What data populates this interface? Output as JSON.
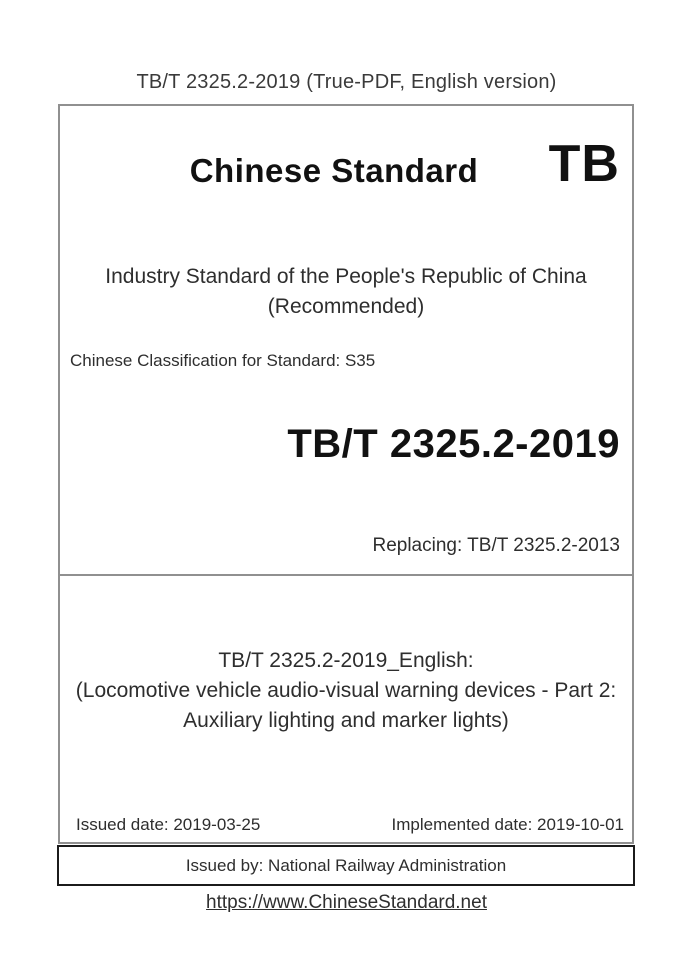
{
  "header": {
    "text": "TB/T 2325.2-2019 (True-PDF, English version)"
  },
  "cover": {
    "brand_title": "Chinese Standard",
    "brand_code": "TB",
    "industry_line1": "Industry Standard of the People's Republic of China",
    "industry_line2": "(Recommended)",
    "classification": "Chinese Classification for Standard: S35",
    "standard_number": "TB/T 2325.2-2019",
    "replacing": "Replacing: TB/T 2325.2-2013",
    "english_title_line1": "TB/T 2325.2-2019_English:",
    "english_title_line2": "(Locomotive vehicle audio-visual warning devices - Part 2:",
    "english_title_line3": "Auxiliary lighting and marker lights)",
    "issued_date": "Issued date: 2019-03-25",
    "implemented_date": "Implemented date: 2019-10-01",
    "issued_by": "Issued by: National Railway Administration"
  },
  "footer": {
    "link_text": "https://www.ChineseStandard.net",
    "link_href": "https://www.ChineseStandard.net"
  },
  "colors": {
    "box_border_gray": "#909090",
    "box_border_black": "#1b1b1b",
    "text_main": "#2e2e2e",
    "text_bold": "#111111"
  }
}
